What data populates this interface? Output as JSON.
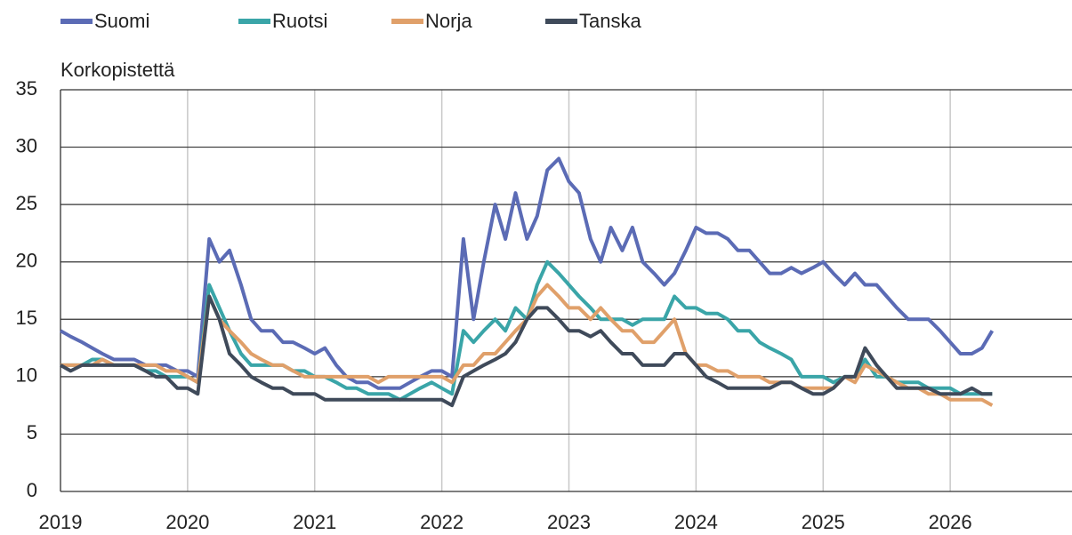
{
  "chart_data": {
    "type": "line",
    "y_label": "Korkopistettä",
    "x": [
      2019,
      2019.08,
      2019.17,
      2019.25,
      2019.33,
      2019.42,
      2019.5,
      2019.58,
      2019.67,
      2019.75,
      2019.83,
      2019.92,
      2020,
      2020.08,
      2020.17,
      2020.25,
      2020.33,
      2020.42,
      2020.5,
      2020.58,
      2020.67,
      2020.75,
      2020.83,
      2020.92,
      2021,
      2021.08,
      2021.17,
      2021.25,
      2021.33,
      2021.42,
      2021.5,
      2021.58,
      2021.67,
      2021.75,
      2021.83,
      2021.92,
      2022,
      2022.08,
      2022.17,
      2022.25,
      2022.33,
      2022.42,
      2022.5,
      2022.58,
      2022.67,
      2022.75,
      2022.83,
      2022.92,
      2023,
      2023.08,
      2023.17,
      2023.25,
      2023.33,
      2023.42,
      2023.5,
      2023.58,
      2023.67,
      2023.75,
      2023.83,
      2023.92,
      2024,
      2024.08,
      2024.17,
      2024.25,
      2024.33,
      2024.42,
      2024.5,
      2024.58,
      2024.67,
      2024.75,
      2024.83,
      2024.92,
      2025,
      2025.08,
      2025.17,
      2025.25,
      2025.33,
      2025.42,
      2025.5,
      2025.58,
      2025.67,
      2025.75,
      2025.83,
      2025.92,
      2026,
      2026.08,
      2026.17,
      2026.25,
      2026.33
    ],
    "series": [
      {
        "name": "Suomi",
        "color": "#5b6bb5",
        "values": [
          14,
          13.5,
          13,
          12.5,
          12,
          11.5,
          11.5,
          11.5,
          11,
          11,
          11,
          10.5,
          10.5,
          10,
          22,
          20,
          21,
          18,
          15,
          14,
          14,
          13,
          13,
          12.5,
          12,
          12.5,
          11,
          10,
          9.5,
          9.5,
          9,
          9,
          9,
          9.5,
          10,
          10.5,
          10.5,
          10,
          22,
          15,
          20,
          25,
          22,
          26,
          22,
          24,
          28,
          29,
          27,
          26,
          22,
          20,
          23,
          21,
          23,
          20,
          19,
          18,
          19,
          21,
          23,
          22.5,
          22.5,
          22,
          21,
          21,
          20,
          19,
          19,
          19.5,
          19,
          19.5,
          20,
          19,
          18,
          19,
          18,
          18,
          17,
          16,
          15,
          15,
          15,
          14,
          13,
          12,
          12,
          12.5,
          14
        ]
      },
      {
        "name": "Ruotsi",
        "color": "#3aa5a8",
        "values": [
          11,
          11,
          11,
          11.5,
          11.5,
          11,
          11,
          11,
          10.5,
          10.5,
          10,
          10,
          10,
          9.5,
          18,
          16,
          14,
          12,
          11,
          11,
          11,
          11,
          10.5,
          10.5,
          10,
          10,
          9.5,
          9,
          9,
          8.5,
          8.5,
          8.5,
          8,
          8.5,
          9,
          9.5,
          9,
          8.5,
          14,
          13,
          14,
          15,
          14,
          16,
          15,
          18,
          20,
          19,
          18,
          17,
          16,
          15,
          15,
          15,
          14.5,
          15,
          15,
          15,
          17,
          16,
          16,
          15.5,
          15.5,
          15,
          14,
          14,
          13,
          12.5,
          12,
          11.5,
          10,
          10,
          10,
          9.5,
          10,
          10,
          11.5,
          10,
          10,
          9.5,
          9.5,
          9.5,
          9,
          9,
          9,
          8.5,
          8.5,
          8.5,
          8.5
        ]
      },
      {
        "name": "Norja",
        "color": "#e0a06a",
        "values": [
          11,
          11,
          11,
          11,
          11.5,
          11,
          11,
          11,
          11,
          11,
          10.5,
          10.5,
          10,
          9.5,
          17,
          15,
          14,
          13,
          12,
          11.5,
          11,
          11,
          10.5,
          10,
          10,
          10,
          10,
          10,
          10,
          10,
          9.5,
          10,
          10,
          10,
          10,
          10,
          10,
          9.5,
          11,
          11,
          12,
          12,
          13,
          14,
          15,
          17,
          18,
          17,
          16,
          16,
          15,
          16,
          15,
          14,
          14,
          13,
          13,
          14,
          15,
          12,
          11,
          11,
          10.5,
          10.5,
          10,
          10,
          10,
          9.5,
          9.5,
          9.5,
          9,
          9,
          9,
          9,
          10,
          9.5,
          11,
          10.5,
          10,
          9.5,
          9,
          9,
          8.5,
          8.5,
          8,
          8,
          8,
          8,
          7.5
        ]
      },
      {
        "name": "Tanska",
        "color": "#3f4a5a",
        "values": [
          11,
          10.5,
          11,
          11,
          11,
          11,
          11,
          11,
          10.5,
          10,
          10,
          9,
          9,
          8.5,
          17,
          15,
          12,
          11,
          10,
          9.5,
          9,
          9,
          8.5,
          8.5,
          8.5,
          8,
          8,
          8,
          8,
          8,
          8,
          8,
          8,
          8,
          8,
          8,
          8,
          7.5,
          10,
          10.5,
          11,
          11.5,
          12,
          13,
          15,
          16,
          16,
          15,
          14,
          14,
          13.5,
          14,
          13,
          12,
          12,
          11,
          11,
          11,
          12,
          12,
          11,
          10,
          9.5,
          9,
          9,
          9,
          9,
          9,
          9.5,
          9.5,
          9,
          8.5,
          8.5,
          9,
          10,
          10,
          12.5,
          11,
          10,
          9,
          9,
          9,
          9,
          8.5,
          8.5,
          8.5,
          9,
          8.5,
          8.5
        ]
      }
    ],
    "xlim": [
      2019,
      2027
    ],
    "xticks": [
      2019,
      2020,
      2021,
      2022,
      2023,
      2024,
      2025,
      2026
    ],
    "ylim": [
      0,
      35
    ],
    "yticks": [
      0,
      5,
      10,
      15,
      20,
      25,
      30,
      35
    ],
    "grid": true,
    "legend": "top"
  }
}
